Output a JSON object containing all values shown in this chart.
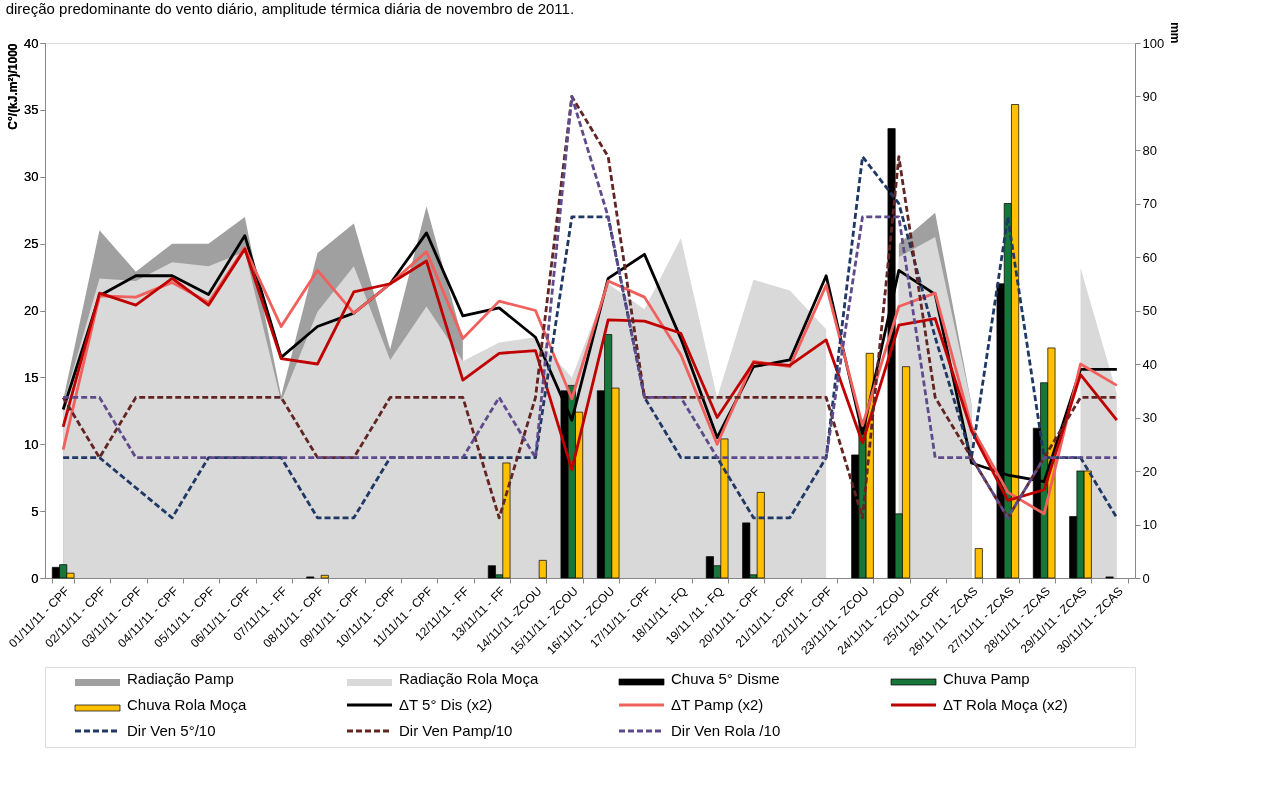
{
  "chart_data": {
    "type": "bar",
    "title": "direção predominante do vento diário, amplitude térmica diária de novembro de 2011.",
    "ylabel": "C°/(kJ.m²)/1000",
    "y2label": "mm",
    "categories": [
      "01/11/11 - CPF",
      "02/11/11 - CPF",
      "03/11/11 - CPF",
      "04/11/11 - CPF",
      "05/11/11 - CPF",
      "06/11/11 - CPF",
      "07/11/11 - FF",
      "08/11/11 - CPF",
      "09/11/11 - CPF",
      "10/11/11 - CPF",
      "11/11/11 - CPF",
      "12/11/11 - FF",
      "13/11/11 - FF",
      "14/11/11 -ZCOU",
      "15/11/11 - ZCOU",
      "16/11/11 - ZCOU",
      "17/11/11 - CPF",
      "18/11/11 - FQ",
      "19/11 /11 - FQ",
      "20/11/11 - CPF",
      "21/11/11 - CPF",
      "22/11/11 - CPF",
      "23/11/11 - ZCOU",
      "24/11/11 - ZCOU",
      "25/11/11 -CPF",
      "26/11 /11 - ZCAS",
      "27/11/11 - ZCAS",
      "28/11/11 - ZCAS",
      "29/11/11 - ZCAS",
      "30/11/11 - ZCAS"
    ],
    "ylim": [
      0,
      40
    ],
    "yticks": [
      0,
      5,
      10,
      15,
      20,
      25,
      30,
      35,
      40
    ],
    "y2lim": [
      0,
      100
    ],
    "y2ticks": [
      0,
      10,
      20,
      30,
      40,
      50,
      60,
      70,
      80,
      90,
      100
    ],
    "grid": false,
    "legend": "bottom",
    "series": [
      {
        "name": "Radiação Pamp",
        "type": "area",
        "color": "#a0a0a0",
        "values": [
          13.3,
          26.0,
          22.9,
          25.0,
          25.0,
          27.0,
          13.6,
          24.3,
          26.5,
          17.1,
          27.8,
          17.8,
          null,
          null,
          null,
          null,
          null,
          null,
          null,
          null,
          null,
          null,
          null,
          25.0,
          27.3,
          13.0,
          null,
          null,
          null,
          null
        ]
      },
      {
        "name": "Radiação Rola Moça",
        "type": "area",
        "color": "#d9d9d9",
        "values": [
          13.0,
          22.4,
          22.2,
          23.6,
          23.3,
          24.4,
          13.2,
          19.9,
          23.3,
          16.3,
          20.3,
          16.2,
          17.6,
          18.0,
          15.0,
          22.0,
          20.1,
          25.4,
          13.5,
          22.3,
          21.5,
          18.6,
          null,
          24.0,
          25.5,
          13.0,
          null,
          null,
          23.2,
          13.8
        ]
      },
      {
        "name": "Chuva 5° Disme",
        "axis": "y2",
        "color": "#000000",
        "values": [
          2.0,
          null,
          null,
          null,
          null,
          null,
          null,
          0.2,
          null,
          null,
          null,
          null,
          2.3,
          null,
          35,
          35,
          null,
          null,
          4,
          10.3,
          null,
          null,
          23,
          84,
          null,
          null,
          55,
          28,
          11.5,
          0.2
        ]
      },
      {
        "name": "Chuva Pamp",
        "axis": "y2",
        "color": "#17763a",
        "values": [
          2.5,
          null,
          null,
          null,
          null,
          null,
          null,
          null,
          null,
          null,
          null,
          null,
          0.6,
          null,
          36,
          45.5,
          null,
          null,
          2.3,
          0.6,
          null,
          null,
          29.5,
          12,
          null,
          null,
          70,
          36.5,
          20,
          null
        ]
      },
      {
        "name": "Chuva Rola Moça",
        "axis": "y2",
        "color": "#ffc000",
        "values": [
          0.9,
          null,
          null,
          null,
          null,
          null,
          null,
          0.5,
          null,
          null,
          null,
          null,
          21.5,
          3.3,
          31,
          35.5,
          null,
          null,
          26,
          16,
          null,
          null,
          42,
          39.5,
          null,
          5.5,
          88.5,
          43,
          20,
          null
        ]
      },
      {
        "name": "ΔT 5° Dis (x2)",
        "type": "line",
        "color": "#000000",
        "line_style": "solid",
        "values": [
          12.6,
          21.1,
          22.6,
          22.6,
          21.2,
          25.6,
          16.5,
          18.8,
          19.8,
          22.0,
          25.8,
          19.6,
          20.2,
          18.0,
          11.8,
          22.4,
          24.2,
          17.9,
          10.5,
          15.8,
          16.3,
          22.6,
          10.8,
          23.0,
          21.2,
          8.6,
          7.7,
          7.2,
          15.6,
          15.6
        ]
      },
      {
        "name": "ΔT Pamp (x2)",
        "type": "line",
        "color": "#f0605d",
        "line_style": "solid",
        "values": [
          9.6,
          21.1,
          21.0,
          22.1,
          20.6,
          24.7,
          18.8,
          23.0,
          19.8,
          22.0,
          24.4,
          17.9,
          20.7,
          20.0,
          13.4,
          22.2,
          21.0,
          16.7,
          10.0,
          16.2,
          15.8,
          21.9,
          11.4,
          20.3,
          21.3,
          11.3,
          6.4,
          4.8,
          16.0,
          14.4
        ]
      },
      {
        "name": "ΔT Rola Moça (x2)",
        "type": "line",
        "color": "#c00000",
        "line_style": "solid",
        "values": [
          11.3,
          21.3,
          20.4,
          22.4,
          20.4,
          24.6,
          16.4,
          16.0,
          21.4,
          22.0,
          23.7,
          14.8,
          16.8,
          17.0,
          8.1,
          19.3,
          19.2,
          18.3,
          12.0,
          16.1,
          15.9,
          17.8,
          10.1,
          18.9,
          19.4,
          11.0,
          5.8,
          6.6,
          15.2,
          11.8
        ]
      },
      {
        "name": "Dir Ven 5°/10",
        "type": "line",
        "color": "#1f3864",
        "line_style": "dashed",
        "values": [
          9,
          9,
          6.75,
          4.5,
          9,
          9,
          9,
          4.5,
          4.5,
          9,
          9,
          9,
          9,
          9,
          27,
          27,
          13.5,
          9,
          9,
          4.5,
          4.5,
          9,
          31.5,
          28,
          18,
          9,
          27,
          9,
          9,
          4.5
        ]
      },
      {
        "name": "Dir Ven Pamp/10",
        "type": "line",
        "color": "#632523",
        "line_style": "dashed",
        "values": [
          13.5,
          9,
          13.5,
          13.5,
          13.5,
          13.5,
          13.5,
          9,
          9,
          13.5,
          13.5,
          13.5,
          4.5,
          13.5,
          36,
          31.5,
          13.5,
          13.5,
          13.5,
          13.5,
          13.5,
          13.5,
          4.5,
          31.5,
          13.5,
          9,
          4.5,
          9,
          13.5,
          13.5
        ]
      },
      {
        "name": "Dir Ven Rola /10",
        "type": "line",
        "color": "#5f4b8b",
        "line_style": "dashed",
        "values": [
          13.5,
          13.5,
          9,
          9,
          9,
          9,
          9,
          9,
          9,
          9,
          9,
          9,
          13.5,
          9,
          36,
          27,
          13.5,
          13.5,
          9,
          9,
          9,
          9,
          27,
          27,
          9,
          9,
          4.5,
          9,
          9,
          9
        ]
      }
    ]
  }
}
